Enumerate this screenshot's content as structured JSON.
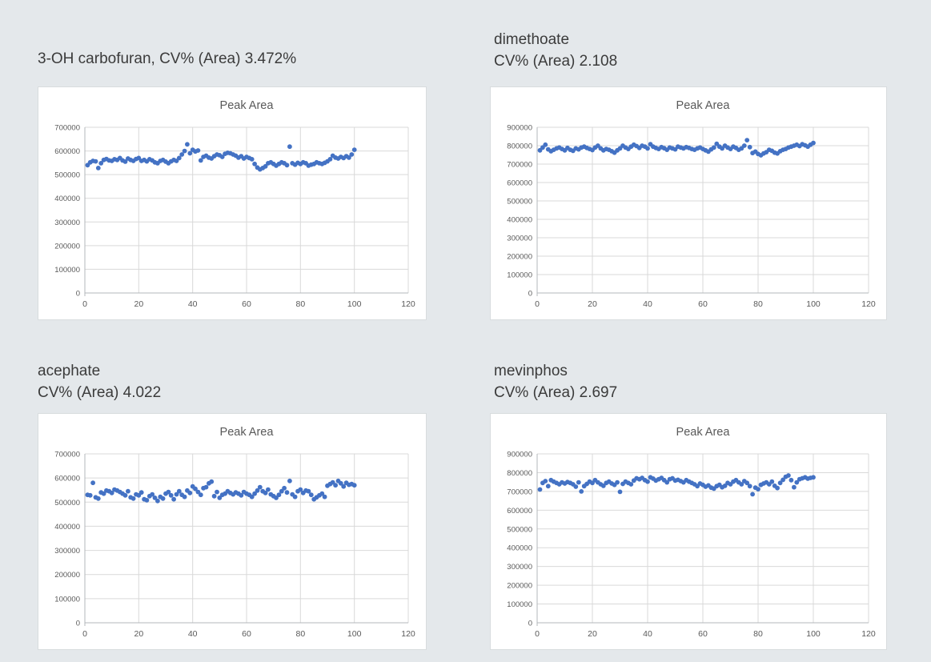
{
  "colors": {
    "page_background": "#e4e8eb",
    "panel_background": "#ffffff",
    "panel_border": "#d8dcde",
    "heading_text": "#3b3b3b",
    "axis_text": "#595959",
    "gridline": "#d9d9d9",
    "axis_line": "#b3b7bb",
    "marker": "#4472C4"
  },
  "chart_data": [
    {
      "type": "scatter",
      "compound": "3-OH carbofuran",
      "heading_line1": "3-OH carbofuran, CV% (Area) 3.472%",
      "heading_line2": "",
      "cv_percent_area": "3.472%",
      "title": "Peak Area",
      "xlabel": "",
      "ylabel": "",
      "xlim": [
        0,
        120
      ],
      "xticks": [
        0,
        20,
        40,
        60,
        80,
        100,
        120
      ],
      "ylim": [
        0,
        700000
      ],
      "yticks": [
        0,
        100000,
        200000,
        300000,
        400000,
        500000,
        600000,
        700000
      ],
      "grid": true,
      "legend": false,
      "marker_color": "#4472C4",
      "x": {
        "start": 1,
        "step": 1
      },
      "y": [
        540000,
        552000,
        558000,
        556000,
        528000,
        548000,
        562000,
        566000,
        560000,
        558000,
        565000,
        562000,
        570000,
        560000,
        555000,
        568000,
        562000,
        558000,
        566000,
        570000,
        558000,
        562000,
        556000,
        565000,
        560000,
        552000,
        548000,
        558000,
        562000,
        555000,
        548000,
        556000,
        562000,
        558000,
        570000,
        585000,
        600000,
        628000,
        590000,
        605000,
        598000,
        602000,
        560000,
        575000,
        580000,
        572000,
        568000,
        578000,
        585000,
        582000,
        575000,
        588000,
        592000,
        590000,
        585000,
        580000,
        572000,
        578000,
        568000,
        575000,
        570000,
        565000,
        545000,
        530000,
        522000,
        528000,
        535000,
        548000,
        552000,
        545000,
        538000,
        545000,
        552000,
        548000,
        540000,
        618000,
        548000,
        542000,
        550000,
        545000,
        552000,
        548000,
        538000,
        542000,
        545000,
        552000,
        548000,
        545000,
        550000,
        556000,
        565000,
        580000,
        572000,
        568000,
        575000,
        570000,
        578000,
        572000,
        585000,
        605000
      ]
    },
    {
      "type": "scatter",
      "compound": "dimethoate",
      "heading_line1": "dimethoate",
      "heading_line2": "CV% (Area) 2.108",
      "cv_percent_area": "2.108",
      "title": "Peak Area",
      "xlabel": "",
      "ylabel": "",
      "xlim": [
        0,
        120
      ],
      "xticks": [
        0,
        20,
        40,
        60,
        80,
        100,
        120
      ],
      "ylim": [
        0,
        900000
      ],
      "yticks": [
        0,
        100000,
        200000,
        300000,
        400000,
        500000,
        600000,
        700000,
        800000,
        900000
      ],
      "grid": true,
      "legend": false,
      "marker_color": "#4472C4",
      "x": {
        "start": 1,
        "step": 1
      },
      "y": [
        775000,
        790000,
        805000,
        780000,
        770000,
        778000,
        785000,
        790000,
        782000,
        775000,
        788000,
        778000,
        772000,
        785000,
        780000,
        790000,
        795000,
        788000,
        782000,
        776000,
        790000,
        800000,
        785000,
        775000,
        782000,
        778000,
        770000,
        762000,
        775000,
        785000,
        800000,
        790000,
        782000,
        795000,
        805000,
        798000,
        788000,
        800000,
        795000,
        785000,
        808000,
        795000,
        788000,
        782000,
        792000,
        786000,
        778000,
        790000,
        785000,
        780000,
        795000,
        790000,
        785000,
        792000,
        788000,
        782000,
        778000,
        785000,
        790000,
        782000,
        775000,
        768000,
        780000,
        790000,
        810000,
        795000,
        785000,
        800000,
        790000,
        782000,
        795000,
        788000,
        778000,
        785000,
        800000,
        830000,
        792000,
        760000,
        768000,
        755000,
        748000,
        758000,
        765000,
        778000,
        772000,
        762000,
        758000,
        770000,
        778000,
        782000,
        790000,
        795000,
        800000,
        805000,
        798000,
        808000,
        802000,
        795000,
        805000,
        815000
      ]
    },
    {
      "type": "scatter",
      "compound": "acephate",
      "heading_line1": "acephate",
      "heading_line2": "CV% (Area) 4.022",
      "cv_percent_area": "4.022",
      "title": "Peak Area",
      "xlabel": "",
      "ylabel": "",
      "xlim": [
        0,
        120
      ],
      "xticks": [
        0,
        20,
        40,
        60,
        80,
        100,
        120
      ],
      "ylim": [
        0,
        700000
      ],
      "yticks": [
        0,
        100000,
        200000,
        300000,
        400000,
        500000,
        600000,
        700000
      ],
      "grid": true,
      "legend": false,
      "marker_color": "#4472C4",
      "x": {
        "start": 1,
        "step": 1
      },
      "y": [
        530000,
        528000,
        580000,
        520000,
        515000,
        540000,
        535000,
        548000,
        545000,
        538000,
        552000,
        548000,
        542000,
        535000,
        528000,
        545000,
        520000,
        515000,
        532000,
        528000,
        540000,
        512000,
        508000,
        525000,
        532000,
        518000,
        505000,
        522000,
        515000,
        535000,
        542000,
        528000,
        512000,
        532000,
        545000,
        530000,
        522000,
        548000,
        538000,
        565000,
        555000,
        542000,
        530000,
        558000,
        562000,
        578000,
        585000,
        525000,
        542000,
        518000,
        530000,
        535000,
        545000,
        538000,
        532000,
        540000,
        535000,
        528000,
        542000,
        535000,
        530000,
        522000,
        535000,
        548000,
        562000,
        545000,
        538000,
        552000,
        532000,
        525000,
        518000,
        530000,
        545000,
        558000,
        540000,
        588000,
        532000,
        522000,
        545000,
        552000,
        538000,
        548000,
        545000,
        530000,
        512000,
        520000,
        528000,
        535000,
        522000,
        568000,
        575000,
        582000,
        570000,
        588000,
        578000,
        565000,
        580000,
        572000,
        575000,
        570000
      ]
    },
    {
      "type": "scatter",
      "compound": "mevinphos",
      "heading_line1": "mevinphos",
      "heading_line2": "CV% (Area) 2.697",
      "cv_percent_area": "2.697",
      "title": "Peak Area",
      "xlabel": "",
      "ylabel": "",
      "xlim": [
        0,
        120
      ],
      "xticks": [
        0,
        20,
        40,
        60,
        80,
        100,
        120
      ],
      "ylim": [
        0,
        900000
      ],
      "yticks": [
        0,
        100000,
        200000,
        300000,
        400000,
        500000,
        600000,
        700000,
        800000,
        900000
      ],
      "grid": true,
      "legend": false,
      "marker_color": "#4472C4",
      "x": {
        "start": 1,
        "step": 1
      },
      "y": [
        710000,
        745000,
        755000,
        728000,
        760000,
        752000,
        745000,
        738000,
        748000,
        742000,
        750000,
        745000,
        738000,
        725000,
        748000,
        700000,
        728000,
        740000,
        752000,
        745000,
        760000,
        748000,
        738000,
        730000,
        745000,
        752000,
        742000,
        735000,
        748000,
        698000,
        740000,
        752000,
        745000,
        738000,
        758000,
        770000,
        765000,
        772000,
        760000,
        752000,
        775000,
        768000,
        758000,
        765000,
        772000,
        760000,
        748000,
        765000,
        770000,
        758000,
        762000,
        755000,
        748000,
        760000,
        752000,
        745000,
        738000,
        728000,
        742000,
        735000,
        725000,
        732000,
        720000,
        715000,
        728000,
        735000,
        722000,
        730000,
        745000,
        738000,
        752000,
        760000,
        748000,
        738000,
        755000,
        745000,
        728000,
        685000,
        720000,
        712000,
        735000,
        742000,
        748000,
        738000,
        752000,
        730000,
        718000,
        745000,
        762000,
        778000,
        785000,
        760000,
        722000,
        748000,
        765000,
        770000,
        775000,
        768000,
        772000,
        775000
      ]
    }
  ]
}
